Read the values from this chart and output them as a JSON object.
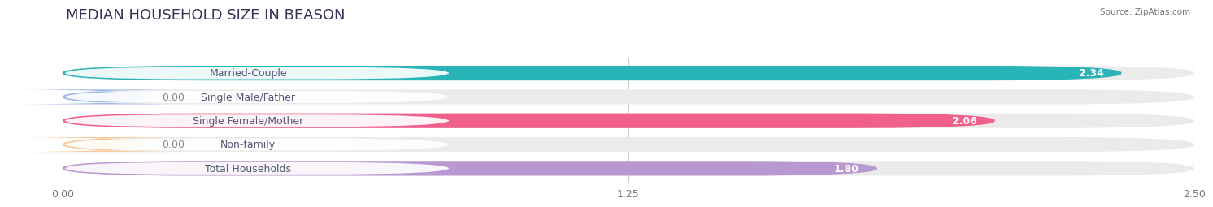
{
  "title": "MEDIAN HOUSEHOLD SIZE IN BEASON",
  "source": "Source: ZipAtlas.com",
  "categories": [
    "Married-Couple",
    "Single Male/Father",
    "Single Female/Mother",
    "Non-family",
    "Total Households"
  ],
  "values": [
    2.34,
    0.0,
    2.06,
    0.0,
    1.8
  ],
  "bar_colors": [
    "#29b5b8",
    "#9db8e8",
    "#f0608a",
    "#f8c896",
    "#b898d0"
  ],
  "background_color": "#ffffff",
  "bar_bg_color": "#ebebeb",
  "xlim": [
    0,
    2.5
  ],
  "xticks": [
    0.0,
    1.25,
    2.5
  ],
  "xtick_labels": [
    "0.00",
    "1.25",
    "2.50"
  ],
  "title_fontsize": 13,
  "label_fontsize": 9,
  "value_fontsize": 9,
  "bar_height": 0.62,
  "label_color": "#555577"
}
